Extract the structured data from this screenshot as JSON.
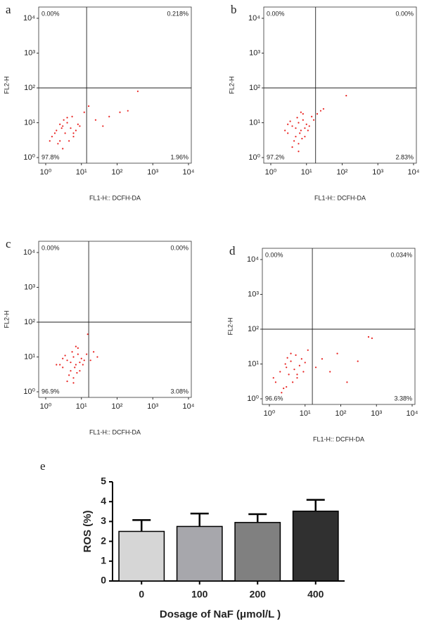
{
  "chart_data": [
    {
      "type": "scatter",
      "panel": "a",
      "xlabel": "FL1-H:: DCFH-DA",
      "ylabel": "FL2-H",
      "log_scale": true,
      "color": "#e8201e",
      "xlim": [
        1,
        10000
      ],
      "ylim": [
        1,
        10000
      ],
      "xticks": [
        {
          "value": 1,
          "label": "10⁰"
        },
        {
          "value": 10,
          "label": "10¹"
        },
        {
          "value": 100,
          "label": "10²"
        },
        {
          "value": 1000,
          "label": "10³"
        },
        {
          "value": 10000,
          "label": "10⁴"
        }
      ],
      "yticks": [
        {
          "value": 1,
          "label": "10⁰"
        },
        {
          "value": 10,
          "label": "10¹"
        },
        {
          "value": 100,
          "label": "10²"
        },
        {
          "value": 1000,
          "label": "10³"
        },
        {
          "value": 10000,
          "label": "10⁴"
        }
      ],
      "gate": {
        "x": 14,
        "y": 100
      },
      "quadrant_labels": {
        "upper_left": "0.00%",
        "upper_right": "0.218%",
        "lower_left": "97.8%",
        "lower_right": "1.96%"
      },
      "x": [
        1.5,
        2,
        2.5,
        3,
        3.5,
        4,
        5,
        6,
        7,
        8,
        2.2,
        3.2,
        4.5,
        1.8,
        2.8,
        5.5,
        9,
        12,
        3,
        4,
        6,
        1.3,
        2.5,
        16,
        25,
        40,
        60,
        120,
        200,
        380
      ],
      "y": [
        4,
        6,
        3,
        8,
        5,
        10,
        7,
        4,
        6,
        9,
        2.5,
        12,
        3,
        5,
        7,
        15,
        8,
        20,
        1.8,
        14,
        5,
        3,
        9,
        30,
        12,
        8,
        15,
        20,
        22,
        80
      ]
    },
    {
      "type": "scatter",
      "panel": "b",
      "xlabel": "FL1-H:: DCFH-DA",
      "ylabel": "FL2-H",
      "log_scale": true,
      "color": "#e8201e",
      "xlim": [
        1,
        10000
      ],
      "ylim": [
        1,
        10000
      ],
      "xticks": [
        {
          "value": 1,
          "label": "10⁰"
        },
        {
          "value": 10,
          "label": "10¹"
        },
        {
          "value": 100,
          "label": "10²"
        },
        {
          "value": 1000,
          "label": "10³"
        },
        {
          "value": 10000,
          "label": "10⁴"
        }
      ],
      "yticks": [
        {
          "value": 1,
          "label": "10⁰"
        },
        {
          "value": 10,
          "label": "10¹"
        },
        {
          "value": 100,
          "label": "10²"
        },
        {
          "value": 1000,
          "label": "10³"
        },
        {
          "value": 10000,
          "label": "10⁴"
        }
      ],
      "gate": {
        "x": 18,
        "y": 100
      },
      "quadrant_labels": {
        "upper_left": "0.00%",
        "upper_right": "0.00%",
        "lower_left": "97.2%",
        "lower_right": "2.83%"
      },
      "x": [
        3,
        4,
        5,
        6,
        7,
        8,
        9,
        10,
        4.5,
        5.5,
        6.5,
        7.5,
        3.5,
        12,
        14,
        4,
        6,
        8,
        11,
        5,
        7,
        9,
        2.5,
        3,
        16,
        20,
        25,
        30,
        6,
        130
      ],
      "y": [
        5,
        8,
        4,
        10,
        6,
        12,
        7,
        9,
        3,
        14,
        5,
        3.5,
        11,
        8,
        15,
        2,
        2.5,
        18,
        6,
        7,
        20,
        4,
        6,
        9,
        12,
        18,
        22,
        25,
        1.5,
        60
      ]
    },
    {
      "type": "scatter",
      "panel": "c",
      "xlabel": "FL1-H:: DCFH-DA",
      "ylabel": "FL2-H",
      "log_scale": true,
      "color": "#e8201e",
      "xlim": [
        1,
        10000
      ],
      "ylim": [
        1,
        10000
      ],
      "xticks": [
        {
          "value": 1,
          "label": "10⁰"
        },
        {
          "value": 10,
          "label": "10¹"
        },
        {
          "value": 100,
          "label": "10²"
        },
        {
          "value": 1000,
          "label": "10³"
        },
        {
          "value": 10000,
          "label": "10⁴"
        }
      ],
      "yticks": [
        {
          "value": 1,
          "label": "10⁰"
        },
        {
          "value": 10,
          "label": "10¹"
        },
        {
          "value": 100,
          "label": "10²"
        },
        {
          "value": 1000,
          "label": "10³"
        },
        {
          "value": 10000,
          "label": "10⁴"
        }
      ],
      "gate": {
        "x": 16,
        "y": 100
      },
      "quadrant_labels": {
        "upper_left": "0.00%",
        "upper_right": "0.00%",
        "lower_left": "96.9%",
        "lower_right": "3.08%"
      },
      "x": [
        3,
        4,
        5,
        6,
        7,
        8,
        9,
        10,
        4.5,
        5.5,
        6.5,
        7.5,
        3.5,
        12,
        2.5,
        4,
        6,
        8,
        11,
        5,
        7,
        9,
        2,
        3,
        14,
        18,
        22,
        28,
        6,
        15
      ],
      "y": [
        5,
        8,
        4,
        10,
        6,
        12,
        7,
        9,
        3,
        14,
        5,
        3.5,
        11,
        8,
        6,
        2,
        2.5,
        18,
        6,
        7,
        20,
        4,
        6,
        9,
        12,
        8,
        14,
        10,
        1.8,
        45
      ]
    },
    {
      "type": "scatter",
      "panel": "d",
      "xlabel": "FL1-H:: DCFH-DA",
      "ylabel": "FL2-H",
      "log_scale": true,
      "color": "#e8201e",
      "xlim": [
        1,
        10000
      ],
      "ylim": [
        1,
        10000
      ],
      "xticks": [
        {
          "value": 1,
          "label": "10⁰"
        },
        {
          "value": 10,
          "label": "10¹"
        },
        {
          "value": 100,
          "label": "10²"
        },
        {
          "value": 1000,
          "label": "10³"
        },
        {
          "value": 10000,
          "label": "10⁴"
        }
      ],
      "yticks": [
        {
          "value": 1,
          "label": "10⁰"
        },
        {
          "value": 10,
          "label": "10¹"
        },
        {
          "value": 100,
          "label": "10²"
        },
        {
          "value": 1000,
          "label": "10³"
        },
        {
          "value": 10000,
          "label": "10⁴"
        }
      ],
      "gate": {
        "x": 16,
        "y": 100
      },
      "quadrant_labels": {
        "upper_left": "0.00%",
        "upper_right": "0.034%",
        "lower_left": "96.6%",
        "lower_right": "3.38%"
      },
      "x": [
        1.5,
        2,
        2.5,
        3,
        3.5,
        4,
        5,
        6,
        7,
        8,
        2.2,
        3.2,
        4.5,
        1.3,
        2.8,
        5.5,
        9,
        12,
        3,
        4,
        6,
        10,
        20,
        30,
        50,
        80,
        150,
        300,
        600,
        750
      ],
      "y": [
        3,
        6,
        2,
        8,
        5,
        12,
        7,
        4,
        9,
        14,
        1.5,
        15,
        3,
        4,
        10,
        18,
        6,
        25,
        2.2,
        20,
        5,
        11,
        8,
        14,
        6,
        20,
        3,
        12,
        60,
        55
      ]
    },
    {
      "type": "bar",
      "panel": "e",
      "xlabel": "Dosage of NaF (μmol/L )",
      "ylabel": "ROS (%)",
      "categories": [
        "0",
        "100",
        "200",
        "400"
      ],
      "values": [
        2.5,
        2.75,
        2.95,
        3.52
      ],
      "errors": [
        0.57,
        0.65,
        0.42,
        0.57
      ],
      "colors": [
        "#d6d6d6",
        "#a7a7ac",
        "#808080",
        "#303030"
      ],
      "ylim": [
        0,
        5
      ],
      "yticks": [
        0,
        1,
        2,
        3,
        4,
        5
      ]
    }
  ]
}
